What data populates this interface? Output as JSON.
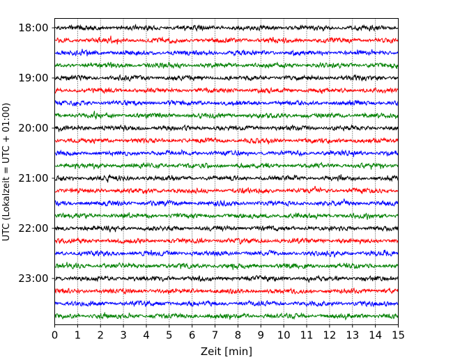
{
  "chart_data": {
    "type": "line",
    "title": "",
    "xlabel": "Zeit  [min]",
    "ylabel": "UTC (Lokalzeit = UTC + 01:00)",
    "xlim": [
      0,
      15
    ],
    "x_ticks": [
      "0",
      "1",
      "2",
      "3",
      "4",
      "5",
      "6",
      "7",
      "8",
      "9",
      "10",
      "11",
      "12",
      "13",
      "14",
      "15"
    ],
    "y_tick_labels": [
      "18:00",
      "19:00",
      "20:00",
      "21:00",
      "22:00",
      "23:00"
    ],
    "grid": "vertical-dotted",
    "legend": "none",
    "trace_interval_min": 15,
    "start_time": "18:00",
    "series": [
      {
        "time": "18:00",
        "color": "#000000"
      },
      {
        "time": "18:15",
        "color": "#ff0000"
      },
      {
        "time": "18:30",
        "color": "#0000ff"
      },
      {
        "time": "18:45",
        "color": "#008000"
      },
      {
        "time": "19:00",
        "color": "#000000"
      },
      {
        "time": "19:15",
        "color": "#ff0000"
      },
      {
        "time": "19:30",
        "color": "#0000ff"
      },
      {
        "time": "19:45",
        "color": "#008000"
      },
      {
        "time": "20:00",
        "color": "#000000"
      },
      {
        "time": "20:15",
        "color": "#ff0000"
      },
      {
        "time": "20:30",
        "color": "#0000ff"
      },
      {
        "time": "20:45",
        "color": "#008000"
      },
      {
        "time": "21:00",
        "color": "#000000"
      },
      {
        "time": "21:15",
        "color": "#ff0000"
      },
      {
        "time": "21:30",
        "color": "#0000ff"
      },
      {
        "time": "21:45",
        "color": "#008000"
      },
      {
        "time": "22:00",
        "color": "#000000"
      },
      {
        "time": "22:15",
        "color": "#ff0000"
      },
      {
        "time": "22:30",
        "color": "#0000ff"
      },
      {
        "time": "22:45",
        "color": "#008000"
      },
      {
        "time": "23:00",
        "color": "#000000"
      },
      {
        "time": "23:15",
        "color": "#ff0000"
      },
      {
        "time": "23:30",
        "color": "#0000ff"
      },
      {
        "time": "23:45",
        "color": "#008000"
      }
    ]
  }
}
